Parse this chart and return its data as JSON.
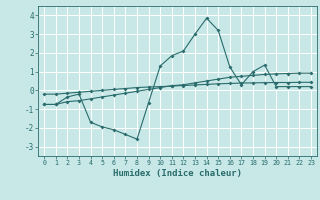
{
  "title": "",
  "xlabel": "Humidex (Indice chaleur)",
  "background_color": "#c8e8e8",
  "grid_color": "#ffffff",
  "line_color": "#2a6b6b",
  "xlim": [
    -0.5,
    23.5
  ],
  "ylim": [
    -3.5,
    4.5
  ],
  "yticks": [
    -3,
    -2,
    -1,
    0,
    1,
    2,
    3,
    4
  ],
  "xticks": [
    0,
    1,
    2,
    3,
    4,
    5,
    6,
    7,
    8,
    9,
    10,
    11,
    12,
    13,
    14,
    15,
    16,
    17,
    18,
    19,
    20,
    21,
    22,
    23
  ],
  "series1_x": [
    0,
    1,
    2,
    3,
    4,
    5,
    6,
    7,
    8,
    9,
    10,
    11,
    12,
    13,
    14,
    15,
    16,
    17,
    18,
    19,
    20,
    21,
    22,
    23
  ],
  "series1_y": [
    -0.75,
    -0.75,
    -0.6,
    -0.55,
    -0.45,
    -0.35,
    -0.25,
    -0.15,
    -0.05,
    0.05,
    0.15,
    0.25,
    0.3,
    0.4,
    0.5,
    0.6,
    0.7,
    0.75,
    0.8,
    0.85,
    0.88,
    0.9,
    0.92,
    0.92
  ],
  "series2_x": [
    0,
    1,
    2,
    3,
    4,
    5,
    6,
    7,
    8,
    9,
    10,
    11,
    12,
    13,
    14,
    15,
    16,
    17,
    18,
    19,
    20,
    21,
    22,
    23
  ],
  "series2_y": [
    -0.2,
    -0.2,
    -0.15,
    -0.1,
    -0.05,
    0.0,
    0.05,
    0.1,
    0.15,
    0.18,
    0.2,
    0.23,
    0.26,
    0.29,
    0.32,
    0.35,
    0.37,
    0.39,
    0.4,
    0.41,
    0.42,
    0.42,
    0.43,
    0.43
  ],
  "series3_x": [
    0,
    1,
    2,
    3,
    4,
    5,
    6,
    7,
    8,
    9,
    10,
    11,
    12,
    13,
    14,
    15,
    16,
    17,
    18,
    19,
    20,
    21,
    22,
    23
  ],
  "series3_y": [
    -0.75,
    -0.75,
    -0.35,
    -0.2,
    -1.7,
    -1.95,
    -2.1,
    -2.35,
    -2.6,
    -0.65,
    1.3,
    1.85,
    2.1,
    3.0,
    3.85,
    3.2,
    1.25,
    0.3,
    1.0,
    1.35,
    0.2,
    0.2,
    0.2,
    0.2
  ],
  "marker_size": 2.0,
  "line_width": 0.8,
  "tick_labelsize": 5.5,
  "xlabel_fontsize": 6.5
}
